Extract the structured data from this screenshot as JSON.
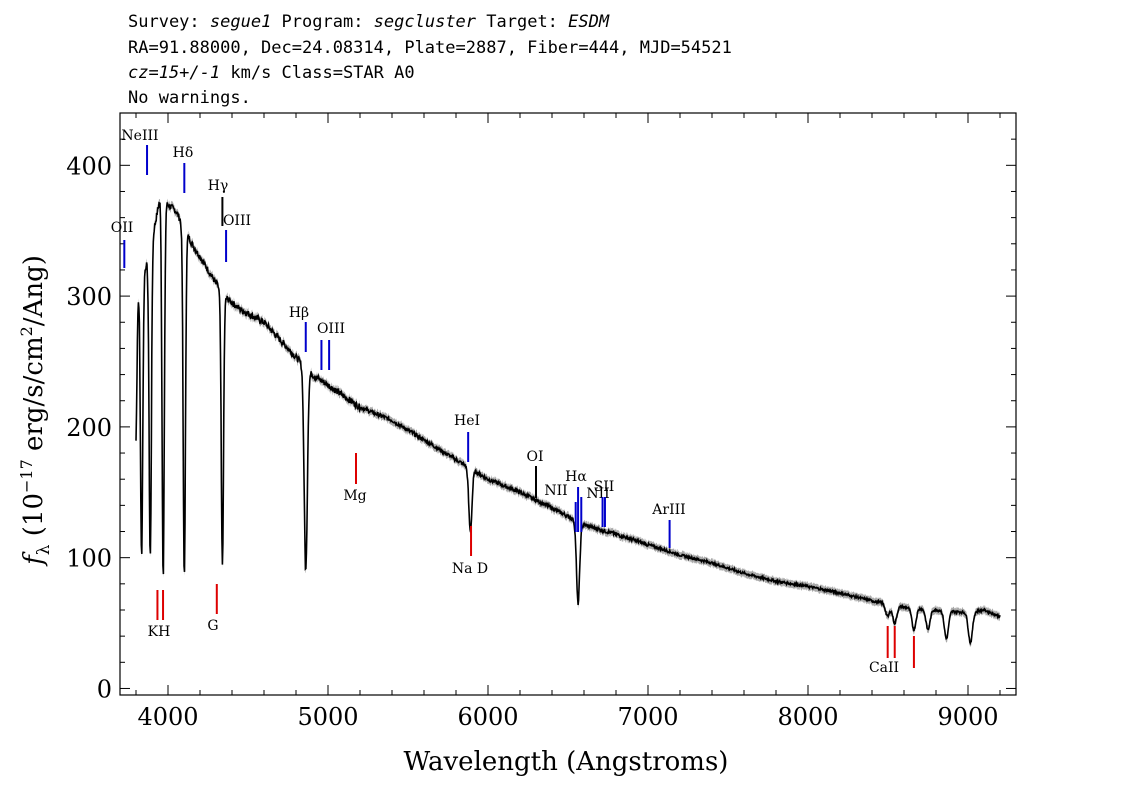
{
  "header": {
    "survey_label": "Survey: ",
    "survey": "segue1",
    "program_label": " Program: ",
    "program": "segcluster",
    "target_label": " Target: ",
    "target": "ESDM",
    "line2": "RA=91.88000, Dec=24.08314, Plate=2887, Fiber=444, MJD=54521",
    "cz_label": "cz=15+/-1",
    "cz_rest": " km/s Class=STAR A0",
    "line4": "No warnings."
  },
  "chart_data": {
    "type": "line",
    "xlabel": "Wavelength (Angstroms)",
    "ylabel": "f_λ (10^-17 erg/s/cm^2/Ang)",
    "xlim": [
      3700,
      9300
    ],
    "ylim": [
      -5,
      440
    ],
    "xticks": [
      4000,
      5000,
      6000,
      7000,
      8000,
      9000
    ],
    "yticks": [
      0,
      100,
      200,
      300,
      400
    ],
    "color_flux": "#000000",
    "color_error": "#aaaaaa",
    "color_emission": "#0000cc",
    "color_absorption": "#dd0000",
    "continuum": [
      [
        3800,
        300
      ],
      [
        3880,
        330
      ],
      [
        3950,
        375
      ],
      [
        4050,
        365
      ],
      [
        4150,
        340
      ],
      [
        4250,
        320
      ],
      [
        4350,
        300
      ],
      [
        4450,
        290
      ],
      [
        4600,
        280
      ],
      [
        4750,
        260
      ],
      [
        4900,
        240
      ],
      [
        5000,
        232
      ],
      [
        5200,
        215
      ],
      [
        5400,
        205
      ],
      [
        5600,
        190
      ],
      [
        5800,
        175
      ],
      [
        6000,
        160
      ],
      [
        6200,
        150
      ],
      [
        6400,
        138
      ],
      [
        6600,
        125
      ],
      [
        6800,
        118
      ],
      [
        7000,
        110
      ],
      [
        7200,
        102
      ],
      [
        7400,
        96
      ],
      [
        7600,
        88
      ],
      [
        7800,
        82
      ],
      [
        8000,
        78
      ],
      [
        8200,
        73
      ],
      [
        8400,
        67
      ],
      [
        8600,
        62
      ],
      [
        8800,
        60
      ],
      [
        9000,
        58
      ],
      [
        9100,
        60
      ],
      [
        9200,
        55
      ]
    ],
    "absorption_features": [
      [
        3798,
        185
      ],
      [
        3835,
        100
      ],
      [
        3889,
        100
      ],
      [
        3970,
        85
      ],
      [
        4102,
        85
      ],
      [
        4340,
        95
      ],
      [
        4861,
        90
      ],
      [
        5890,
        120
      ],
      [
        6563,
        65
      ],
      [
        8498,
        55
      ],
      [
        8542,
        50
      ],
      [
        8662,
        45
      ],
      [
        8750,
        45
      ],
      [
        8865,
        38
      ],
      [
        9015,
        35
      ]
    ],
    "emission_lines": [
      {
        "label": "OII",
        "x": 3727
      },
      {
        "label": "NeIII",
        "x": 3869
      },
      {
        "label": "Hδ",
        "x": 4102
      },
      {
        "label": "Hγ",
        "x": 4340
      },
      {
        "label": "OIII",
        "x": 4363
      },
      {
        "label": "Hβ",
        "x": 4861
      },
      {
        "label": "OIII",
        "x": 4959
      },
      {
        "label": "",
        "x": 5007
      },
      {
        "label": "HeI",
        "x": 5876
      },
      {
        "label": "OI",
        "x": 6300
      },
      {
        "label": "NII",
        "x": 6548
      },
      {
        "label": "Hα",
        "x": 6563
      },
      {
        "label": "NII",
        "x": 6583
      },
      {
        "label": "SII",
        "x": 6716
      },
      {
        "label": "",
        "x": 6731
      },
      {
        "label": "ArIII",
        "x": 7135
      }
    ],
    "absorption_lines": [
      {
        "label": "K",
        "x": 3934
      },
      {
        "label": "H",
        "x": 3969
      },
      {
        "label": "G",
        "x": 4305
      },
      {
        "label": "Mg",
        "x": 5175
      },
      {
        "label": "Na D",
        "x": 5894
      },
      {
        "label": "CaII",
        "x": 8498
      },
      {
        "label": "",
        "x": 8542
      },
      {
        "label": "",
        "x": 8662
      }
    ]
  }
}
